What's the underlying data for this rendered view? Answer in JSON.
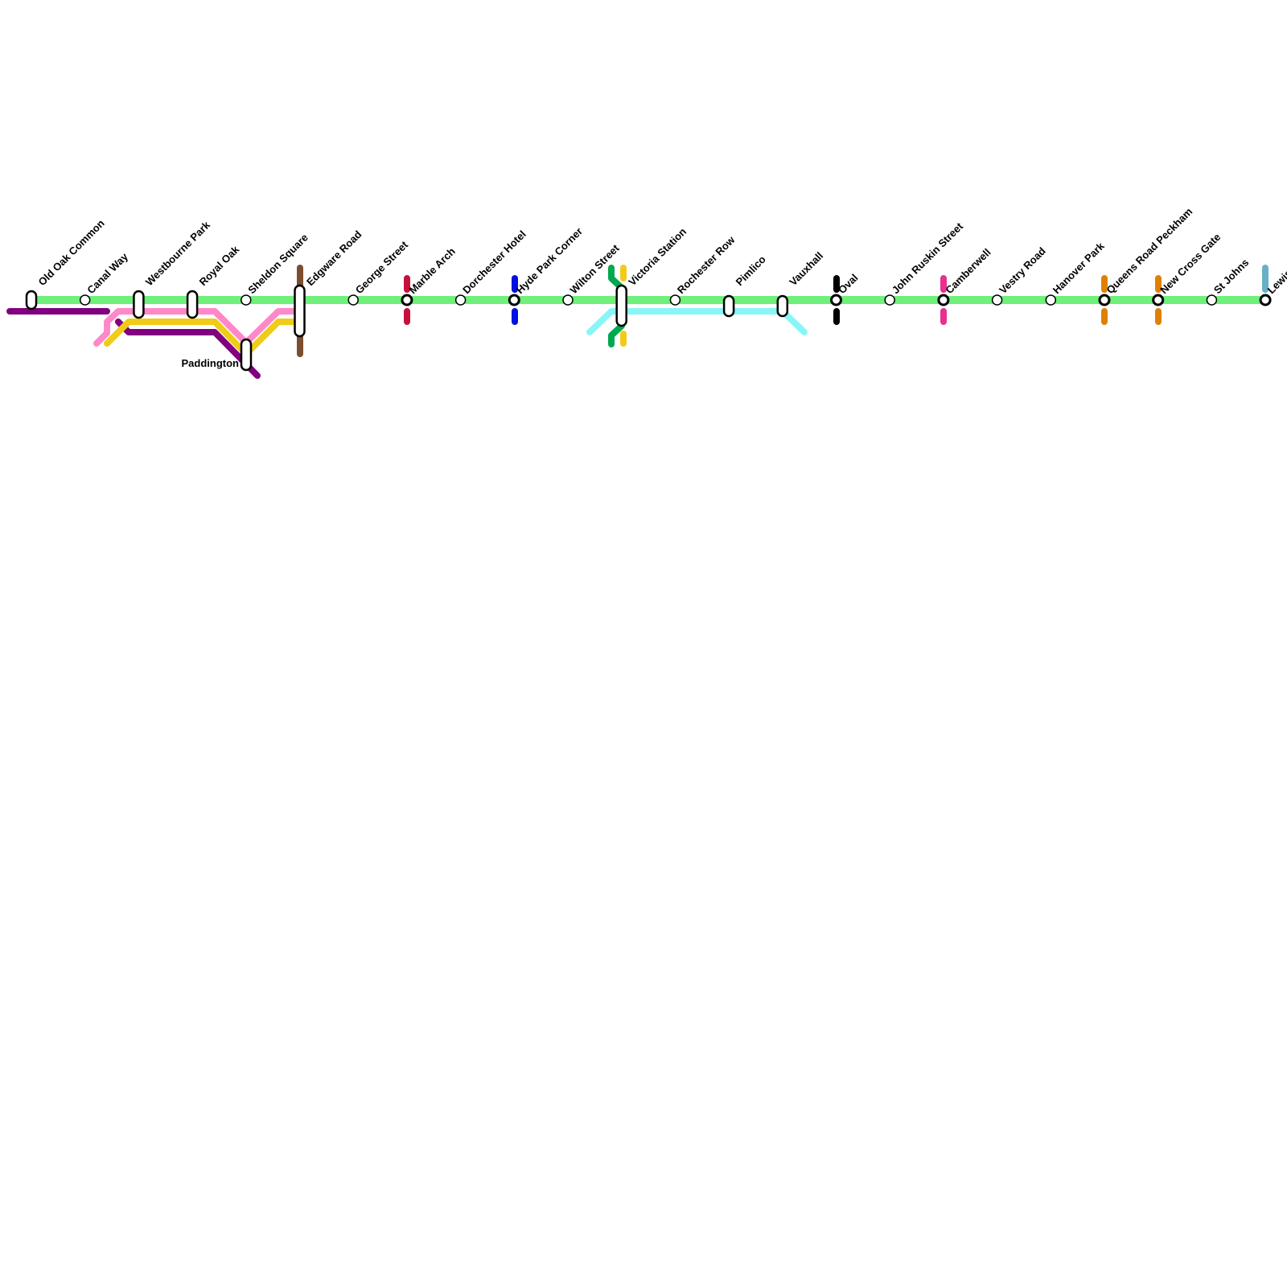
{
  "colors": {
    "main_line": "#6ef07a",
    "purple": "#800080",
    "pink": "#ff88c8",
    "yellow": "#f0cc18",
    "brown": "#7a4e2e",
    "red": "#c8103c",
    "blue": "#0010e0",
    "dark_green": "#00a850",
    "cyan": "#88f6f8",
    "black": "#000000",
    "magenta": "#e8308c",
    "orange": "#e08000",
    "light_blue": "#68b0c8"
  },
  "stations": [
    {
      "name": "Old Oak Common",
      "type": "pill"
    },
    {
      "name": "Canal Way",
      "type": "circle"
    },
    {
      "name": "Westbourne Park",
      "type": "pill"
    },
    {
      "name": "Royal Oak",
      "type": "pill"
    },
    {
      "name": "Sheldon Square",
      "type": "circle"
    },
    {
      "name": "Edgware Road",
      "type": "pill"
    },
    {
      "name": "George Street",
      "type": "circle"
    },
    {
      "name": "Marble Arch",
      "type": "interchange"
    },
    {
      "name": "Dorchester Hotel",
      "type": "circle"
    },
    {
      "name": "Hyde Park Corner",
      "type": "interchange"
    },
    {
      "name": "Wilton Street",
      "type": "circle"
    },
    {
      "name": "Victoria Station",
      "type": "pill"
    },
    {
      "name": "Rochester Row",
      "type": "circle"
    },
    {
      "name": "Pimlico",
      "type": "pill"
    },
    {
      "name": "Vauxhall",
      "type": "pill"
    },
    {
      "name": "Oval",
      "type": "interchange"
    },
    {
      "name": "John Ruskin Street",
      "type": "circle"
    },
    {
      "name": "Camberwell",
      "type": "interchange"
    },
    {
      "name": "Vestry Road",
      "type": "circle"
    },
    {
      "name": "Hanover Park",
      "type": "circle"
    },
    {
      "name": "Queens Road Peckham",
      "type": "interchange"
    },
    {
      "name": "New Cross Gate",
      "type": "interchange"
    },
    {
      "name": "St Johns",
      "type": "circle"
    },
    {
      "name": "Lewisham",
      "type": "interchange"
    }
  ],
  "paddington": {
    "name": "Paddington"
  }
}
